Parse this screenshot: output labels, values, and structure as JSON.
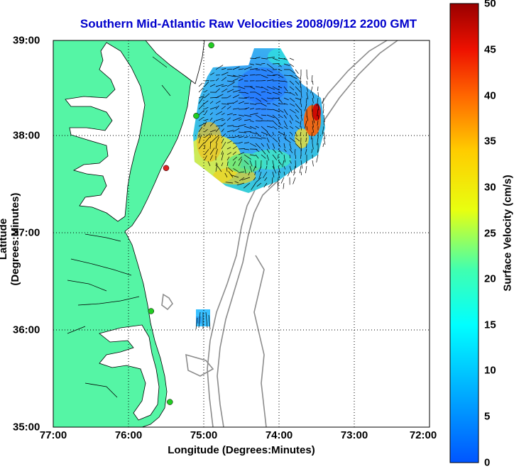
{
  "title": "Southern Mid-Atlantic Raw Velocities 2008/09/12 2200 GMT",
  "x_axis": {
    "label": "Longitude (Degrees:Minutes)",
    "ticks": [
      "77:00",
      "76:00",
      "75:00",
      "74:00",
      "73:00",
      "72:00"
    ]
  },
  "y_axis": {
    "label": "Latitude (Degrees:Minutes)",
    "ticks": [
      "39:00",
      "38:00",
      "37:00",
      "36:00",
      "35:00"
    ]
  },
  "colorbar": {
    "label": "Surface Velocity (cm/s)",
    "min": 0,
    "max": 50,
    "ticks": [
      "50",
      "45",
      "40",
      "35",
      "30",
      "25",
      "20",
      "15",
      "10",
      "5",
      "0"
    ]
  },
  "colors": {
    "title": "#0000cc",
    "land": "#55f5a5",
    "bathymetry": "#8c8c8c",
    "station": "#22cc22",
    "station_offline": "#dd2222"
  },
  "map": {
    "lon_range": [
      -77,
      -72
    ],
    "lat_range": [
      35,
      39
    ],
    "grid": "dotted",
    "stations": [
      {
        "lon": -74.9,
        "lat": 38.95,
        "status": "active"
      },
      {
        "lon": -75.1,
        "lat": 38.22,
        "status": "active"
      },
      {
        "lon": -75.5,
        "lat": 37.68,
        "status": "offline"
      },
      {
        "lon": -75.7,
        "lat": 36.2,
        "status": "active"
      },
      {
        "lon": -75.45,
        "lat": 35.26,
        "status": "active"
      }
    ]
  }
}
